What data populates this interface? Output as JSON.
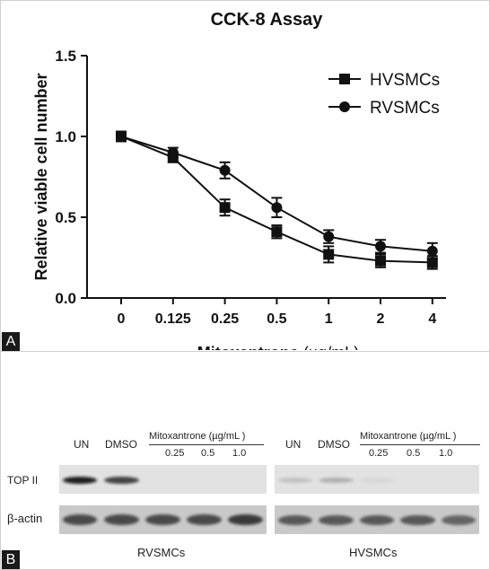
{
  "panel_a": {
    "letter": "A"
  },
  "panel_b": {
    "letter": "B",
    "rvsmc": {
      "lanes": [
        "UN",
        "DMSO"
      ],
      "treatment_label": "Mitoxantrone (µg/mL )",
      "doses": [
        "0.25",
        "0.5",
        "1.0"
      ],
      "cell_line": "RVSMCs",
      "top2_band_intensity": [
        0.95,
        0.85,
        0.0,
        0.0,
        0.0
      ],
      "actin_band_intensity": [
        0.8,
        0.8,
        0.8,
        0.8,
        0.85
      ]
    },
    "hvsmc": {
      "lanes": [
        "UN",
        "DMSO"
      ],
      "treatment_label": "Mitoxantrone (µg/mL )",
      "doses": [
        "0.25",
        "0.5",
        "1.0"
      ],
      "cell_line": "HVSMCs",
      "top2_band_intensity": [
        0.35,
        0.45,
        0.1,
        0.0,
        0.0
      ],
      "actin_band_intensity": [
        0.75,
        0.75,
        0.75,
        0.75,
        0.7
      ]
    },
    "row_labels": {
      "top2": "TOP II",
      "actin": "β-actin"
    }
  },
  "chart_data": {
    "type": "line",
    "title": "CCK-8 Assay",
    "xlabel_main": "Mitoxantrone",
    "xlabel_unit": " (µg/mL)",
    "ylabel": "Relative viable cell number",
    "categories": [
      "0",
      "0.125",
      "0.25",
      "0.5",
      "1",
      "2",
      "4"
    ],
    "y_ticks": [
      "0.0",
      "0.5",
      "1.0",
      "1.5"
    ],
    "ylim": [
      0,
      1.5
    ],
    "legend_position": "top-right",
    "series": [
      {
        "name": "HVSMCs",
        "marker": "square",
        "values": [
          1.0,
          0.87,
          0.56,
          0.41,
          0.27,
          0.23,
          0.22
        ],
        "errors": [
          0.03,
          0.03,
          0.05,
          0.04,
          0.05,
          0.04,
          0.04
        ]
      },
      {
        "name": "RVSMCs",
        "marker": "circle",
        "values": [
          1.0,
          0.9,
          0.79,
          0.56,
          0.38,
          0.32,
          0.29
        ],
        "errors": [
          0.03,
          0.03,
          0.05,
          0.06,
          0.04,
          0.04,
          0.05
        ]
      }
    ]
  }
}
